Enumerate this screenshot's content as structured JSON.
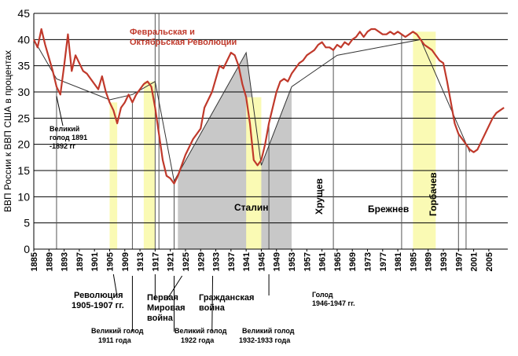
{
  "chart_data": {
    "type": "line",
    "title": "",
    "xlabel": "",
    "ylabel": "ВВП России к ВВП США в процентах",
    "xlim": [
      1885,
      2010
    ],
    "ylim": [
      0,
      45
    ],
    "grid": true,
    "y_ticks": [
      0,
      5,
      10,
      15,
      20,
      25,
      30,
      35,
      40,
      45
    ],
    "x_ticks": [
      1885,
      1889,
      1893,
      1897,
      1901,
      1905,
      1909,
      1913,
      1917,
      1921,
      1925,
      1929,
      1933,
      1937,
      1941,
      1945,
      1949,
      1953,
      1957,
      1961,
      1965,
      1969,
      1973,
      1977,
      1981,
      1985,
      1989,
      1993,
      1997,
      2001,
      2005
    ],
    "series": [
      {
        "name": "",
        "color": "#c0392b",
        "x": [
          1885,
          1886,
          1887,
          1888,
          1889,
          1890,
          1891,
          1892,
          1893,
          1894,
          1895,
          1896,
          1897,
          1898,
          1899,
          1900,
          1901,
          1902,
          1903,
          1904,
          1905,
          1906,
          1907,
          1908,
          1909,
          1910,
          1911,
          1912,
          1913,
          1914,
          1915,
          1916,
          1917,
          1918,
          1919,
          1920,
          1921,
          1922,
          1923,
          1924,
          1925,
          1926,
          1927,
          1928,
          1929,
          1930,
          1931,
          1932,
          1933,
          1934,
          1935,
          1936,
          1937,
          1938,
          1939,
          1940,
          1941,
          1942,
          1943,
          1944,
          1945,
          1946,
          1947,
          1948,
          1949,
          1950,
          1951,
          1952,
          1953,
          1954,
          1955,
          1956,
          1957,
          1958,
          1959,
          1960,
          1961,
          1962,
          1963,
          1964,
          1965,
          1966,
          1967,
          1968,
          1969,
          1970,
          1971,
          1972,
          1973,
          1974,
          1975,
          1976,
          1977,
          1978,
          1979,
          1980,
          1981,
          1982,
          1983,
          1984,
          1985,
          1986,
          1987,
          1988,
          1989,
          1990,
          1991,
          1992,
          1993,
          1994,
          1995,
          1996,
          1997,
          1998,
          1999,
          2000,
          2001,
          2002,
          2003,
          2004,
          2005,
          2006,
          2007,
          2008,
          2009
        ],
        "values": [
          40,
          38.5,
          42,
          39,
          36.5,
          34,
          31,
          29.5,
          35,
          41,
          34,
          37,
          35.5,
          34,
          33.5,
          32.5,
          31.5,
          30.5,
          33,
          30,
          28,
          26.5,
          24,
          27,
          28,
          29.5,
          28,
          29.5,
          30.5,
          31.5,
          32,
          31,
          27,
          22,
          17,
          14,
          13.5,
          12.5,
          14,
          16,
          18,
          19.5,
          21,
          22,
          23,
          27,
          28.5,
          30,
          32.5,
          35,
          34.5,
          36,
          37.5,
          37,
          35,
          31.5,
          29,
          24,
          17,
          16,
          17,
          20,
          24,
          27,
          30,
          32,
          32.5,
          32,
          33.5,
          34.5,
          35.5,
          36,
          37,
          37.5,
          38,
          39,
          39.5,
          38.5,
          38.5,
          38,
          39,
          38.5,
          39.5,
          39,
          40,
          40.5,
          41.5,
          40.5,
          41.5,
          42,
          42,
          41.5,
          41,
          41,
          41.5,
          41,
          41.5,
          41,
          40.5,
          41,
          41.5,
          41,
          40,
          39,
          38.5,
          38,
          37,
          36,
          35.5,
          32,
          28,
          24,
          22,
          21,
          20,
          19,
          18.5,
          19,
          20.5,
          22,
          23.5,
          25,
          26,
          26.5,
          27
        ]
      }
    ],
    "trend_line": {
      "color": "#333333",
      "x": [
        1885,
        1891,
        1905,
        1911,
        1917,
        1922,
        1941,
        1945,
        1953,
        1965,
        1987,
        2000
      ],
      "values": [
        40,
        32.5,
        28.5,
        29.5,
        32,
        13,
        37.5,
        16,
        31,
        37,
        40,
        18.5
      ]
    },
    "shaded_regions": [
      {
        "name": "stalin",
        "x0": 1923,
        "x1": 1953,
        "color": "#c8c8c8"
      },
      {
        "name": "revolution-1905",
        "x0": 1905,
        "x1": 1907,
        "color": "#fafab4"
      },
      {
        "name": "ww1",
        "x0": 1914,
        "x1": 1917,
        "color": "#fafab4"
      },
      {
        "name": "ww2",
        "x0": 1941,
        "x1": 1945,
        "color": "#fafab4"
      },
      {
        "name": "gorbachev",
        "x0": 1985,
        "x1": 1991,
        "color": "#fafab4"
      }
    ],
    "vlines": [
      1891,
      1911,
      1917,
      1918,
      1922,
      1947,
      1964,
      1982,
      1997,
      1999
    ],
    "annotations": {
      "revolutions": [
        "Февральская и",
        "Октябрьская Революции"
      ],
      "famine_1891": [
        "Великий",
        "голод 1891",
        "-1892 гг"
      ],
      "revolution_1905": [
        "Революция",
        "1905-1907 гг."
      ],
      "ww1": [
        "Первая",
        "Мировая",
        "война"
      ],
      "civil_war": [
        "Гражданская",
        "война"
      ],
      "famine_1946": [
        "Голод",
        "1946-1947 гг."
      ],
      "famine_1911": [
        "Великий голод",
        "1911 года"
      ],
      "famine_1922": [
        "Великий голод",
        "1922 года"
      ],
      "famine_1932": [
        "Великий голод",
        "1932-1933 года"
      ],
      "stalin": "Сталин",
      "khrushchev": "Хрущев",
      "brezhnev": "Брежнев",
      "gorbachev": "Горбачев"
    }
  }
}
